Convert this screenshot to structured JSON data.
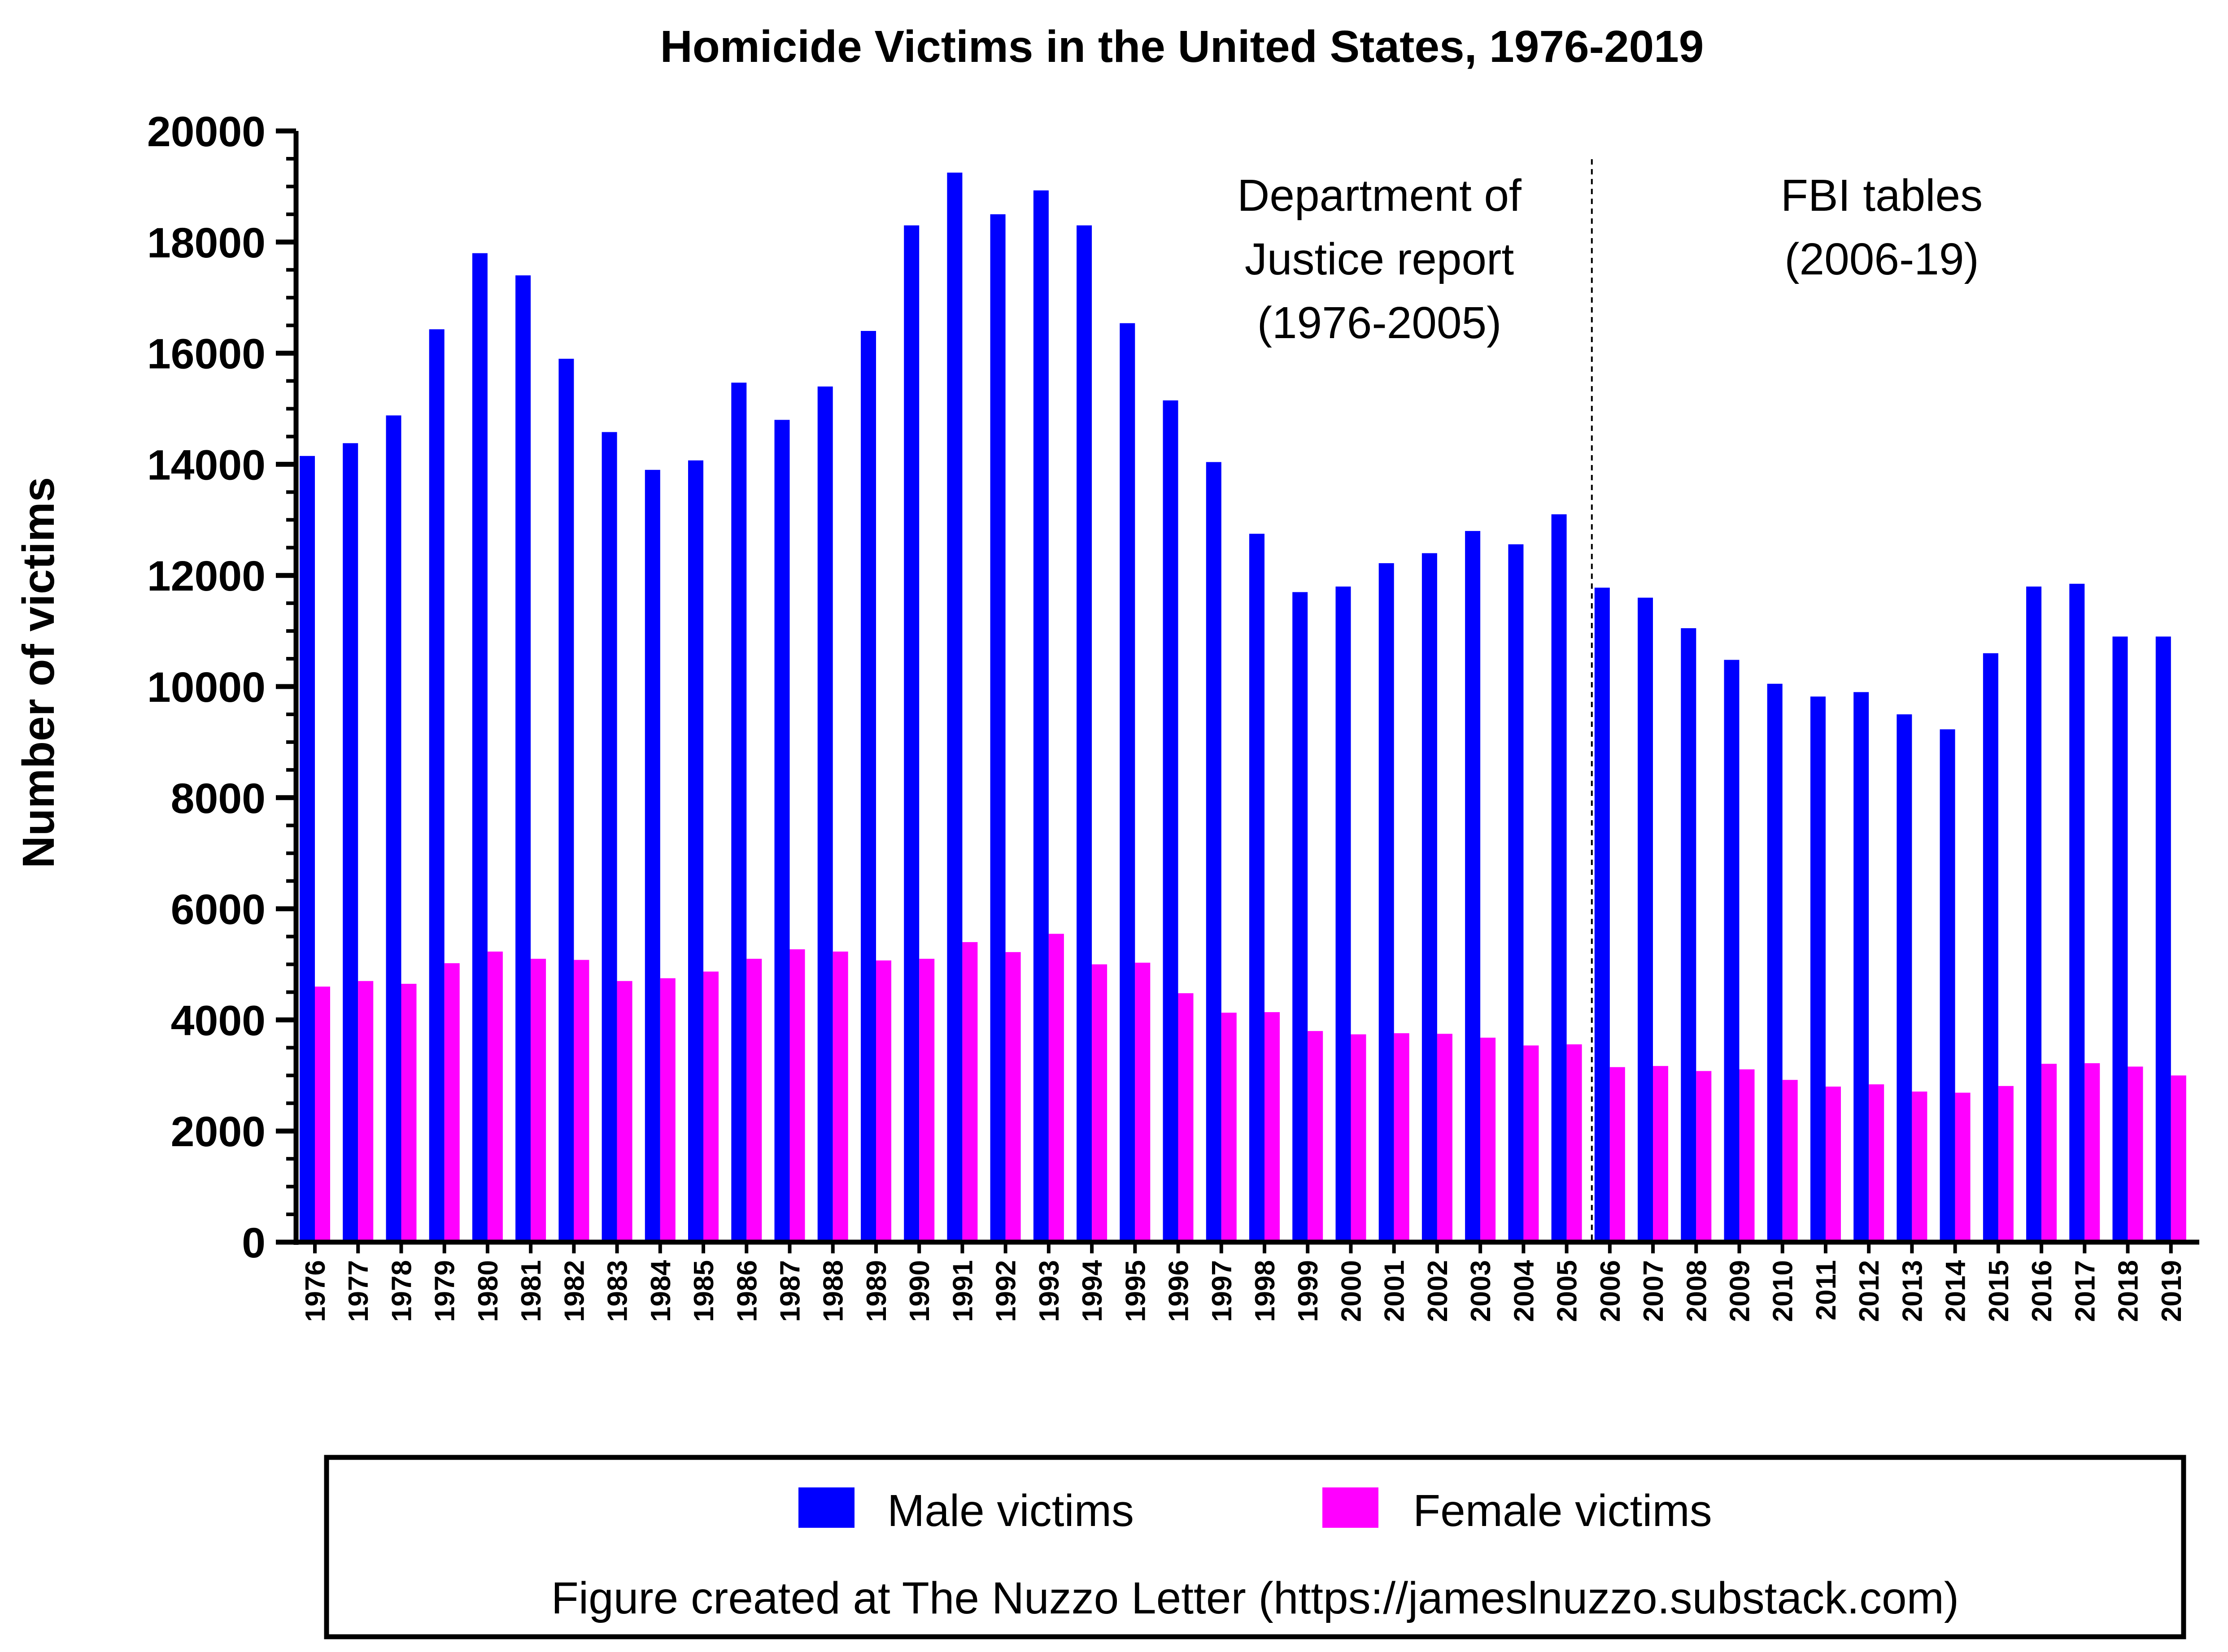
{
  "chart_data": {
    "type": "bar",
    "title": "Homicide Victims in the United States, 1976-2019",
    "ylabel": "Number of victims",
    "xlabel": "",
    "ylim": [
      0,
      20000
    ],
    "y_major_ticks": [
      0,
      2000,
      4000,
      6000,
      8000,
      10000,
      12000,
      14000,
      16000,
      18000,
      20000
    ],
    "y_tick_labels": [
      "0",
      "2000",
      "4000",
      "6000",
      "8000",
      "10000",
      "12000",
      "14000",
      "16000",
      "18000",
      "20000"
    ],
    "categories": [
      "1976",
      "1977",
      "1978",
      "1979",
      "1980",
      "1981",
      "1982",
      "1983",
      "1984",
      "1985",
      "1986",
      "1987",
      "1988",
      "1989",
      "1990",
      "1991",
      "1992",
      "1993",
      "1994",
      "1995",
      "1996",
      "1997",
      "1998",
      "1999",
      "2000",
      "2001",
      "2002",
      "2003",
      "2004",
      "2005",
      "2006",
      "2007",
      "2008",
      "2009",
      "2010",
      "2011",
      "2012",
      "2013",
      "2014",
      "2015",
      "2016",
      "2017",
      "2018",
      "2019"
    ],
    "series": [
      {
        "name": "Male victims",
        "color": "#0000ff",
        "values": [
          14150,
          14380,
          14880,
          16430,
          17800,
          17400,
          15900,
          14580,
          13900,
          14070,
          15470,
          14800,
          15400,
          16400,
          18300,
          19250,
          18500,
          18930,
          18300,
          16540,
          15150,
          14040,
          12750,
          11700,
          11800,
          12220,
          12400,
          12800,
          12560,
          13100,
          11780,
          11600,
          11050,
          10480,
          10050,
          9820,
          9900,
          9500,
          9230,
          10600,
          11800,
          11850,
          10900,
          10900
        ]
      },
      {
        "name": "Female victims",
        "color": "#ff00ff",
        "values": [
          4600,
          4700,
          4650,
          5020,
          5230,
          5100,
          5080,
          4700,
          4750,
          4870,
          5100,
          5270,
          5230,
          5070,
          5100,
          5400,
          5220,
          5550,
          5000,
          5030,
          4480,
          4130,
          4140,
          3800,
          3740,
          3760,
          3750,
          3680,
          3540,
          3560,
          3150,
          3170,
          3080,
          3110,
          2920,
          2800,
          2840,
          2710,
          2690,
          2810,
          3210,
          3220,
          3160,
          3000
        ]
      }
    ],
    "divider_after_category": "2005",
    "annotations": [
      "Department of\nJustice report\n(1976-2005)",
      "FBI tables\n(2006-19)"
    ],
    "grid": false,
    "legend_position": "bottom",
    "footer": "Figure created at The Nuzzo Letter (https://jameslnuzzo.substack.com)"
  }
}
